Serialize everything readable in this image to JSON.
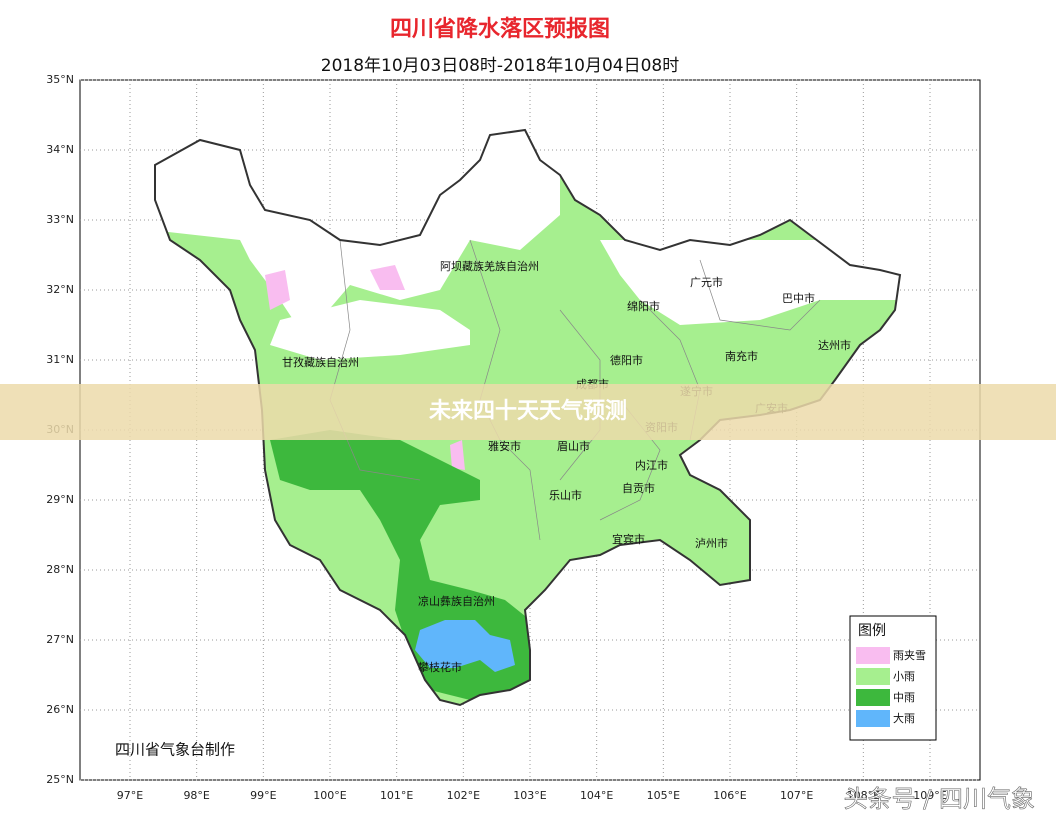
{
  "header": {
    "title": "四川省降水落区预报图",
    "subtitle": "2018年10月03日08时-2018年10月04日08时"
  },
  "map": {
    "latlim": [
      25,
      35
    ],
    "lonlim": [
      96.25,
      109.75
    ],
    "lat_ticks": [
      {
        "value": 25,
        "label": "25°N"
      },
      {
        "value": 26,
        "label": "26°N"
      },
      {
        "value": 27,
        "label": "27°N"
      },
      {
        "value": 28,
        "label": "28°N"
      },
      {
        "value": 29,
        "label": "29°N"
      },
      {
        "value": 30,
        "label": "30°N"
      },
      {
        "value": 31,
        "label": "31°N"
      },
      {
        "value": 32,
        "label": "32°N"
      },
      {
        "value": 33,
        "label": "33°N"
      },
      {
        "value": 34,
        "label": "34°N"
      },
      {
        "value": 35,
        "label": "35°N"
      }
    ],
    "lon_ticks": [
      {
        "value": 97,
        "label": "97°E"
      },
      {
        "value": 98,
        "label": "98°E"
      },
      {
        "value": 99,
        "label": "99°E"
      },
      {
        "value": 100,
        "label": "100°E"
      },
      {
        "value": 101,
        "label": "101°E"
      },
      {
        "value": 102,
        "label": "102°E"
      },
      {
        "value": 103,
        "label": "103°E"
      },
      {
        "value": 104,
        "label": "104°E"
      },
      {
        "value": 105,
        "label": "105°E"
      },
      {
        "value": 106,
        "label": "106°E"
      },
      {
        "value": 107,
        "label": "107°E"
      },
      {
        "value": 108,
        "label": "108°E"
      },
      {
        "value": 109,
        "label": "109°E"
      }
    ],
    "places": [
      "阿坝藏族羌族自治州",
      "广元市",
      "巴中市",
      "绵阳市",
      "甘孜藏族自治州",
      "德阳市",
      "南充市",
      "达州市",
      "成都市",
      "遂宁市",
      "广安市",
      "资阳市",
      "雅安市",
      "眉山市",
      "内江市",
      "自贡市",
      "乐山市",
      "宜宾市",
      "泸州市",
      "凉山彝族自治州",
      "攀枝花市"
    ],
    "legend": {
      "title": "图例",
      "items": [
        {
          "label": "雨夹雪",
          "color": "#f9bdf0"
        },
        {
          "label": "小雨",
          "color": "#a6ef8f"
        },
        {
          "label": "中雨",
          "color": "#3db83d"
        },
        {
          "label": "大雨",
          "color": "#60b6fb"
        }
      ]
    },
    "credit": "四川省气象台制作"
  },
  "banner": "未来四十天天气预测",
  "watermark": "头条号 / 四川气象"
}
